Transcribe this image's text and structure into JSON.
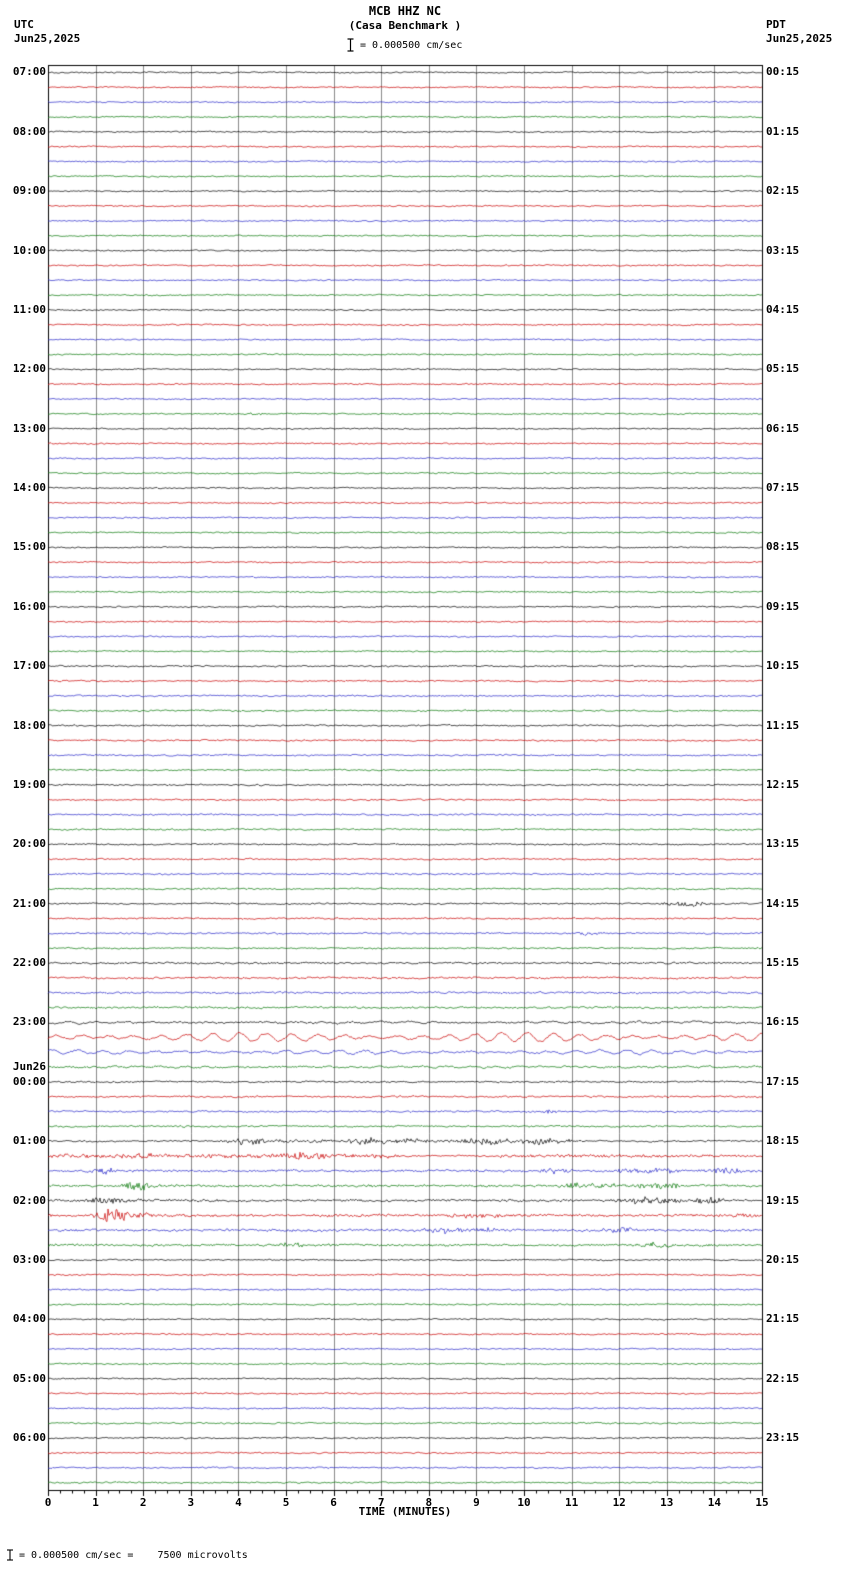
{
  "header": {
    "title": "MCB HHZ NC",
    "subtitle": "(Casa Benchmark )",
    "left_tz": "UTC",
    "left_date": "Jun25,2025",
    "right_tz": "PDT",
    "right_date": "Jun25,2025",
    "scale_label": "= 0.000500 cm/sec"
  },
  "footer": {
    "scale_note": "= 0.000500 cm/sec =    7500 microvolts"
  },
  "axis": {
    "xlabel": "TIME (MINUTES)",
    "xticks": [
      "0",
      "1",
      "2",
      "3",
      "4",
      "5",
      "6",
      "7",
      "8",
      "9",
      "10",
      "11",
      "12",
      "13",
      "14",
      "15"
    ],
    "xmin": 0,
    "xmax": 15
  },
  "chart_data": {
    "type": "line",
    "variant": "helicorder-seismogram",
    "description": "24-hour helicorder display, 96 traces of 15 minutes each, colors cycle black/red/blue/green per quarter hour. Quiet background microseism noise; long-period wave train at 23:00-23:45 UTC; earthquake bursts between 01:00 and 03:00 UTC Jun26.",
    "minutes_per_row": 15,
    "rows_total": 96,
    "row_colors_cycle": [
      "black",
      "red",
      "blue",
      "green"
    ],
    "trace_colors": [
      "#000000",
      "#c80000",
      "#2828c8",
      "#0a780a"
    ],
    "date_break": {
      "label": "Jun26",
      "hour_index": 17
    },
    "hours": [
      {
        "utc": "07:00",
        "pdt": "00:15"
      },
      {
        "utc": "08:00",
        "pdt": "01:15"
      },
      {
        "utc": "09:00",
        "pdt": "02:15"
      },
      {
        "utc": "10:00",
        "pdt": "03:15"
      },
      {
        "utc": "11:00",
        "pdt": "04:15"
      },
      {
        "utc": "12:00",
        "pdt": "05:15"
      },
      {
        "utc": "13:00",
        "pdt": "06:15"
      },
      {
        "utc": "14:00",
        "pdt": "07:15"
      },
      {
        "utc": "15:00",
        "pdt": "08:15"
      },
      {
        "utc": "16:00",
        "pdt": "09:15"
      },
      {
        "utc": "17:00",
        "pdt": "10:15"
      },
      {
        "utc": "18:00",
        "pdt": "11:15"
      },
      {
        "utc": "19:00",
        "pdt": "12:15"
      },
      {
        "utc": "20:00",
        "pdt": "13:15"
      },
      {
        "utc": "21:00",
        "pdt": "14:15"
      },
      {
        "utc": "22:00",
        "pdt": "15:15"
      },
      {
        "utc": "23:00",
        "pdt": "16:15"
      },
      {
        "utc": "00:00",
        "pdt": "17:15"
      },
      {
        "utc": "01:00",
        "pdt": "18:15"
      },
      {
        "utc": "02:00",
        "pdt": "19:15"
      },
      {
        "utc": "03:00",
        "pdt": "20:15"
      },
      {
        "utc": "04:00",
        "pdt": "21:15"
      },
      {
        "utc": "05:00",
        "pdt": "22:15"
      },
      {
        "utc": "06:00",
        "pdt": "23:15"
      }
    ],
    "default_noise": 0.85,
    "noise_overrides": [
      {
        "from": 40,
        "to": 59,
        "amp": 0.95
      },
      {
        "from": 60,
        "to": 67,
        "amp": 1.2
      },
      {
        "from": 68,
        "to": 71,
        "amp": 1.05
      },
      {
        "from": 72,
        "to": 79,
        "amp": 1.0
      },
      {
        "from": 80,
        "to": 95,
        "amp": 0.9
      }
    ],
    "events": [
      {
        "row": 23,
        "type": "burst",
        "c": 4.35,
        "w": 0.15,
        "amp": 1.6
      },
      {
        "row": 56,
        "type": "burst",
        "c": 13.5,
        "w": 0.35,
        "amp": 2.8
      },
      {
        "row": 56,
        "type": "burst",
        "c": 13.0,
        "w": 0.15,
        "amp": 1.5
      },
      {
        "row": 58,
        "type": "burst",
        "c": 11.35,
        "w": 0.3,
        "amp": 1.8
      },
      {
        "row": 64,
        "type": "sine",
        "start": 0,
        "end": 15,
        "amp": 0.8,
        "period": 0.6
      },
      {
        "row": 65,
        "type": "sine",
        "start": 0,
        "end": 15,
        "amp": 4.2,
        "period": 0.55
      },
      {
        "row": 66,
        "type": "sine",
        "start": 0,
        "end": 15,
        "amp": 1.8,
        "period": 0.55
      },
      {
        "row": 67,
        "type": "sine",
        "start": 0,
        "end": 15,
        "amp": 0.7,
        "period": 0.5
      },
      {
        "row": 70,
        "type": "burst",
        "c": 10.55,
        "w": 0.15,
        "amp": 2.2
      },
      {
        "row": 72,
        "type": "band",
        "start": 3.8,
        "end": 11,
        "amp": 1.2
      },
      {
        "row": 72,
        "type": "burst",
        "c": 4.25,
        "w": 0.3,
        "amp": 3.8
      },
      {
        "row": 72,
        "type": "burst",
        "c": 6.75,
        "w": 0.35,
        "amp": 3.2
      },
      {
        "row": 72,
        "type": "burst",
        "c": 7.6,
        "w": 0.25,
        "amp": 2.0
      },
      {
        "row": 72,
        "type": "burst",
        "c": 9.3,
        "w": 0.6,
        "amp": 2.2
      },
      {
        "row": 72,
        "type": "burst",
        "c": 10.3,
        "w": 0.5,
        "amp": 2.2
      },
      {
        "row": 73,
        "type": "band",
        "start": 0,
        "end": 7.2,
        "amp": 1.6
      },
      {
        "row": 73,
        "type": "burst",
        "c": 2.1,
        "w": 0.3,
        "amp": 2.0
      },
      {
        "row": 73,
        "type": "burst",
        "c": 5.35,
        "w": 0.4,
        "amp": 4.5
      },
      {
        "row": 73,
        "type": "band",
        "start": 9.5,
        "end": 15,
        "amp": 1.0
      },
      {
        "row": 74,
        "type": "band",
        "start": 0,
        "end": 15,
        "amp": 0.6
      },
      {
        "row": 74,
        "type": "burst",
        "c": 1.15,
        "w": 0.3,
        "amp": 2.8
      },
      {
        "row": 74,
        "type": "burst",
        "c": 10.65,
        "w": 0.4,
        "amp": 2.2
      },
      {
        "row": 74,
        "type": "burst",
        "c": 12.1,
        "w": 0.3,
        "amp": 2.0
      },
      {
        "row": 74,
        "type": "burst",
        "c": 12.9,
        "w": 0.5,
        "amp": 2.6
      },
      {
        "row": 74,
        "type": "burst",
        "c": 14.3,
        "w": 0.4,
        "amp": 2.2
      },
      {
        "row": 75,
        "type": "band",
        "start": 0,
        "end": 15,
        "amp": 0.6
      },
      {
        "row": 75,
        "type": "burst",
        "c": 1.9,
        "w": 0.3,
        "amp": 5.5
      },
      {
        "row": 75,
        "type": "band",
        "start": 10.8,
        "end": 13.2,
        "amp": 1.8
      },
      {
        "row": 75,
        "type": "burst",
        "c": 12.85,
        "w": 0.35,
        "amp": 2.8
      },
      {
        "row": 76,
        "type": "band",
        "start": 0,
        "end": 15,
        "amp": 0.7
      },
      {
        "row": 76,
        "type": "burst",
        "c": 1.3,
        "w": 0.5,
        "amp": 3.0
      },
      {
        "row": 76,
        "type": "burst",
        "c": 1.9,
        "w": 0.3,
        "amp": 2.2
      },
      {
        "row": 76,
        "type": "burst",
        "c": 12.6,
        "w": 0.7,
        "amp": 3.2
      },
      {
        "row": 76,
        "type": "burst",
        "c": 13.9,
        "w": 0.35,
        "amp": 3.0
      },
      {
        "row": 77,
        "type": "band",
        "start": 0,
        "end": 15,
        "amp": 0.8
      },
      {
        "row": 77,
        "type": "burst",
        "c": 1.35,
        "w": 0.35,
        "amp": 7.0
      },
      {
        "row": 77,
        "type": "burst",
        "c": 2.0,
        "w": 0.3,
        "amp": 2.5
      },
      {
        "row": 77,
        "type": "burst",
        "c": 9.0,
        "w": 0.5,
        "amp": 2.2
      },
      {
        "row": 77,
        "type": "burst",
        "c": 14.55,
        "w": 0.3,
        "amp": 2.2
      },
      {
        "row": 78,
        "type": "band",
        "start": 0,
        "end": 15,
        "amp": 0.7
      },
      {
        "row": 78,
        "type": "burst",
        "c": 8.3,
        "w": 0.5,
        "amp": 2.4
      },
      {
        "row": 78,
        "type": "burst",
        "c": 9.2,
        "w": 0.4,
        "amp": 2.0
      },
      {
        "row": 78,
        "type": "burst",
        "c": 12.0,
        "w": 0.35,
        "amp": 2.2
      },
      {
        "row": 79,
        "type": "band",
        "start": 0,
        "end": 15,
        "amp": 0.6
      },
      {
        "row": 79,
        "type": "burst",
        "c": 5.1,
        "w": 0.4,
        "amp": 2.2
      },
      {
        "row": 79,
        "type": "burst",
        "c": 12.8,
        "w": 0.45,
        "amp": 2.6
      }
    ]
  }
}
